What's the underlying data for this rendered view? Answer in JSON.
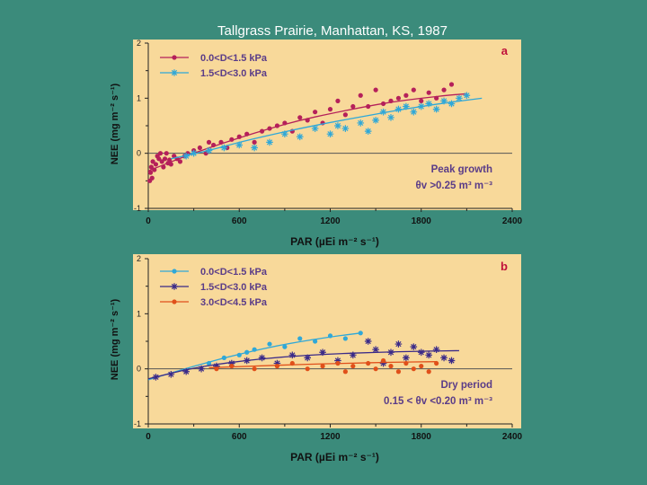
{
  "figure_title": "Tallgrass Prairie, Manhattan, KS, 1987",
  "colors": {
    "background": "#3b8b7b",
    "panel": "#f8d99a",
    "axis": "#222222",
    "annotation": "#5a3c88",
    "panel_letter": "#c0103a"
  },
  "chart_data": [
    {
      "type": "scatter",
      "panel_letter": "a",
      "xlabel": "PAR (µEi m⁻² s⁻¹)",
      "ylabel": "NEE (mg m⁻² s⁻¹)",
      "xlim": [
        0,
        2400
      ],
      "ylim": [
        -1,
        2
      ],
      "xticks": [
        0,
        600,
        1200,
        1800,
        2400
      ],
      "yticks": [
        -1,
        0,
        1,
        2
      ],
      "zero_line": true,
      "annotation": [
        "Peak growth",
        "θv >0.25 m³ m⁻³"
      ],
      "series": [
        {
          "name": "0.0<D<1.5 kPa",
          "color": "#b5205a",
          "marker": "dot",
          "fit": {
            "x": [
              0,
              200,
              400,
              600,
              800,
              1000,
              1200,
              1400,
              1600,
              1800,
              2000,
              2100
            ],
            "y": [
              -0.32,
              -0.1,
              0.1,
              0.28,
              0.45,
              0.6,
              0.72,
              0.83,
              0.93,
              1.0,
              1.06,
              1.08
            ]
          },
          "points": [
            [
              10,
              -0.5
            ],
            [
              15,
              -0.35
            ],
            [
              20,
              -0.25
            ],
            [
              25,
              -0.45
            ],
            [
              30,
              -0.15
            ],
            [
              40,
              -0.3
            ],
            [
              50,
              -0.2
            ],
            [
              60,
              -0.05
            ],
            [
              70,
              -0.1
            ],
            [
              80,
              0.0
            ],
            [
              90,
              -0.15
            ],
            [
              100,
              -0.25
            ],
            [
              110,
              -0.1
            ],
            [
              120,
              0.0
            ],
            [
              130,
              -0.18
            ],
            [
              140,
              -0.12
            ],
            [
              150,
              -0.2
            ],
            [
              170,
              -0.05
            ],
            [
              190,
              -0.1
            ],
            [
              210,
              -0.15
            ],
            [
              240,
              -0.05
            ],
            [
              260,
              0.0
            ],
            [
              300,
              0.05
            ],
            [
              340,
              0.1
            ],
            [
              380,
              0.0
            ],
            [
              400,
              0.2
            ],
            [
              430,
              0.15
            ],
            [
              480,
              0.2
            ],
            [
              520,
              0.1
            ],
            [
              550,
              0.25
            ],
            [
              600,
              0.3
            ],
            [
              650,
              0.35
            ],
            [
              700,
              0.2
            ],
            [
              750,
              0.4
            ],
            [
              800,
              0.45
            ],
            [
              850,
              0.5
            ],
            [
              900,
              0.55
            ],
            [
              950,
              0.4
            ],
            [
              1000,
              0.65
            ],
            [
              1050,
              0.6
            ],
            [
              1100,
              0.75
            ],
            [
              1150,
              0.55
            ],
            [
              1200,
              0.8
            ],
            [
              1250,
              0.95
            ],
            [
              1300,
              0.7
            ],
            [
              1350,
              0.85
            ],
            [
              1400,
              1.05
            ],
            [
              1450,
              0.85
            ],
            [
              1500,
              1.15
            ],
            [
              1550,
              0.9
            ],
            [
              1600,
              0.95
            ],
            [
              1650,
              1.0
            ],
            [
              1700,
              1.05
            ],
            [
              1750,
              1.15
            ],
            [
              1800,
              0.95
            ],
            [
              1850,
              1.1
            ],
            [
              1900,
              1.0
            ],
            [
              1950,
              1.15
            ],
            [
              2000,
              1.25
            ]
          ]
        },
        {
          "name": "1.5<D<3.0 kPa",
          "color": "#2fa8d8",
          "marker": "asterisk",
          "fit": {
            "x": [
              150,
              400,
              600,
              800,
              1000,
              1200,
              1400,
              1600,
              1800,
              2000,
              2200
            ],
            "y": [
              -0.1,
              0.05,
              0.2,
              0.33,
              0.45,
              0.56,
              0.66,
              0.76,
              0.85,
              0.93,
              1.0
            ]
          },
          "points": [
            [
              250,
              -0.05
            ],
            [
              300,
              0.0
            ],
            [
              400,
              0.05
            ],
            [
              500,
              0.1
            ],
            [
              600,
              0.15
            ],
            [
              700,
              0.1
            ],
            [
              800,
              0.2
            ],
            [
              900,
              0.35
            ],
            [
              1000,
              0.3
            ],
            [
              1100,
              0.45
            ],
            [
              1200,
              0.35
            ],
            [
              1250,
              0.5
            ],
            [
              1300,
              0.45
            ],
            [
              1400,
              0.55
            ],
            [
              1450,
              0.4
            ],
            [
              1500,
              0.6
            ],
            [
              1550,
              0.75
            ],
            [
              1600,
              0.65
            ],
            [
              1650,
              0.8
            ],
            [
              1700,
              0.85
            ],
            [
              1750,
              0.75
            ],
            [
              1800,
              0.85
            ],
            [
              1850,
              0.9
            ],
            [
              1900,
              0.8
            ],
            [
              1950,
              0.95
            ],
            [
              2000,
              0.9
            ],
            [
              2050,
              1.0
            ],
            [
              2100,
              1.05
            ]
          ]
        }
      ]
    },
    {
      "type": "scatter",
      "panel_letter": "b",
      "xlabel": "PAR (µEi m⁻² s⁻¹)",
      "ylabel": "NEE (mg m⁻² s⁻¹)",
      "xlim": [
        0,
        2400
      ],
      "ylim": [
        -1,
        2
      ],
      "xticks": [
        0,
        600,
        1200,
        1800,
        2400
      ],
      "yticks": [
        -1,
        0,
        1,
        2
      ],
      "zero_line": true,
      "annotation": [
        "Dry period",
        "0.15 < θv <0.20 m³ m⁻³"
      ],
      "series": [
        {
          "name": "0.0<D<1.5 kPa",
          "color": "#2fa8d8",
          "marker": "dot",
          "fit": {
            "x": [
              0,
              300,
              600,
              900,
              1200,
              1400
            ],
            "y": [
              -0.2,
              0.05,
              0.27,
              0.45,
              0.58,
              0.65
            ]
          },
          "points": [
            [
              400,
              0.1
            ],
            [
              500,
              0.2
            ],
            [
              600,
              0.25
            ],
            [
              650,
              0.3
            ],
            [
              700,
              0.35
            ],
            [
              800,
              0.45
            ],
            [
              900,
              0.4
            ],
            [
              1000,
              0.55
            ],
            [
              1100,
              0.5
            ],
            [
              1200,
              0.6
            ],
            [
              1300,
              0.55
            ],
            [
              1400,
              0.65
            ]
          ]
        },
        {
          "name": "1.5<D<3.0 kPa",
          "color": "#3a2a88",
          "marker": "asterisk",
          "fit": {
            "x": [
              0,
              300,
              600,
              900,
              1200,
              1500,
              1800,
              2050
            ],
            "y": [
              -0.18,
              0.02,
              0.14,
              0.22,
              0.27,
              0.3,
              0.32,
              0.33
            ]
          },
          "points": [
            [
              50,
              -0.15
            ],
            [
              150,
              -0.1
            ],
            [
              250,
              -0.05
            ],
            [
              350,
              0.0
            ],
            [
              450,
              0.05
            ],
            [
              550,
              0.1
            ],
            [
              650,
              0.15
            ],
            [
              750,
              0.2
            ],
            [
              850,
              0.1
            ],
            [
              950,
              0.25
            ],
            [
              1050,
              0.2
            ],
            [
              1150,
              0.3
            ],
            [
              1250,
              0.15
            ],
            [
              1350,
              0.25
            ],
            [
              1450,
              0.5
            ],
            [
              1500,
              0.35
            ],
            [
              1550,
              0.1
            ],
            [
              1600,
              0.3
            ],
            [
              1650,
              0.45
            ],
            [
              1700,
              0.2
            ],
            [
              1750,
              0.4
            ],
            [
              1800,
              0.3
            ],
            [
              1850,
              0.25
            ],
            [
              1900,
              0.35
            ],
            [
              1950,
              0.2
            ],
            [
              2000,
              0.15
            ]
          ]
        },
        {
          "name": "3.0<D<4.5 kPa",
          "color": "#e0501a",
          "marker": "dot",
          "fit": {
            "x": [
              400,
              700,
              1000,
              1300,
              1600,
              1900
            ],
            "y": [
              0.02,
              0.05,
              0.08,
              0.1,
              0.12,
              0.13
            ]
          },
          "points": [
            [
              450,
              0.0
            ],
            [
              550,
              0.05
            ],
            [
              700,
              0.0
            ],
            [
              850,
              0.05
            ],
            [
              950,
              0.1
            ],
            [
              1050,
              0.0
            ],
            [
              1150,
              0.05
            ],
            [
              1250,
              0.1
            ],
            [
              1300,
              -0.05
            ],
            [
              1350,
              0.05
            ],
            [
              1450,
              0.1
            ],
            [
              1500,
              0.0
            ],
            [
              1550,
              0.15
            ],
            [
              1600,
              0.05
            ],
            [
              1650,
              -0.05
            ],
            [
              1700,
              0.1
            ],
            [
              1750,
              0.0
            ],
            [
              1800,
              0.05
            ],
            [
              1850,
              -0.05
            ],
            [
              1900,
              0.1
            ]
          ]
        }
      ]
    }
  ]
}
